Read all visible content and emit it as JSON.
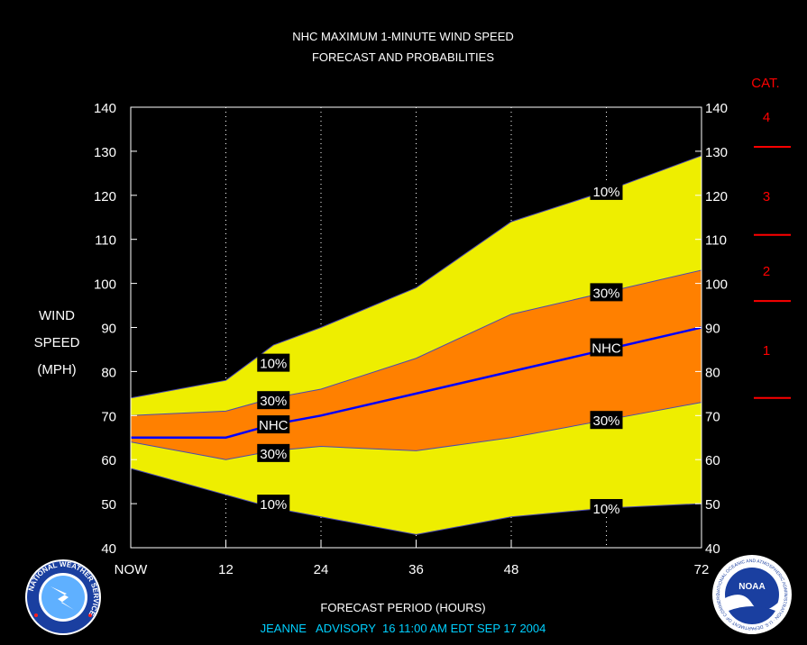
{
  "chart_data": {
    "type": "area",
    "title_line1": "NHC MAXIMUM 1-MINUTE WIND SPEED",
    "title_line2": "FORECAST AND PROBABILITIES",
    "ylabel_lines": [
      "WIND",
      "SPEED",
      "(MPH)"
    ],
    "xlabel": "FORECAST PERIOD (HOURS)",
    "advisory": "JEANNE   ADVISORY  16 11:00 AM EDT SEP 17 2004",
    "xlim": [
      0,
      72
    ],
    "ylim": [
      40,
      140
    ],
    "yticks": [
      40,
      50,
      60,
      70,
      80,
      90,
      100,
      110,
      120,
      130,
      140
    ],
    "xticks": [
      {
        "x": 0,
        "label": "NOW"
      },
      {
        "x": 12,
        "label": "12"
      },
      {
        "x": 24,
        "label": "24"
      },
      {
        "x": 36,
        "label": "36"
      },
      {
        "x": 48,
        "label": "48"
      },
      {
        "x": 72,
        "label": "72"
      }
    ],
    "vgrid_hours": [
      12,
      24,
      36,
      48,
      60
    ],
    "x": [
      0,
      12,
      18,
      24,
      36,
      48,
      60,
      72
    ],
    "series": [
      {
        "name": "10%",
        "values": [
          74,
          78,
          86,
          90,
          99,
          114,
          121,
          129
        ]
      },
      {
        "name": "30%",
        "values": [
          70,
          71,
          74,
          76,
          83,
          93,
          98,
          103
        ]
      },
      {
        "name": "NHC",
        "values": [
          65,
          65,
          68,
          70,
          75,
          80,
          85,
          90
        ]
      },
      {
        "name": "30%",
        "values": [
          64,
          60,
          62,
          63,
          62,
          65,
          69,
          73
        ]
      },
      {
        "name": "10%",
        "values": [
          58,
          52,
          49,
          47,
          43,
          47,
          49,
          50
        ]
      }
    ],
    "labels": [
      {
        "text": "10%",
        "x": 18,
        "y": 82
      },
      {
        "text": "30%",
        "x": 18,
        "y": 73.5
      },
      {
        "text": "NHC",
        "x": 18,
        "y": 68
      },
      {
        "text": "30%",
        "x": 18,
        "y": 61.5
      },
      {
        "text": "10%",
        "x": 18,
        "y": 50
      },
      {
        "text": "10%",
        "x": 60,
        "y": 121
      },
      {
        "text": "30%",
        "x": 60,
        "y": 98
      },
      {
        "text": "NHC",
        "x": 60,
        "y": 85.5
      },
      {
        "text": "30%",
        "x": 60,
        "y": 69
      },
      {
        "text": "10%",
        "x": 60,
        "y": 49
      }
    ],
    "category_title": "CAT.",
    "category_thresholds": [
      74,
      96,
      111,
      131
    ],
    "categories": [
      {
        "label": "1",
        "y": 85
      },
      {
        "label": "2",
        "y": 103
      },
      {
        "label": "3",
        "y": 120
      },
      {
        "label": "4",
        "y": 138
      }
    ],
    "colors": {
      "background": "#000000",
      "band10": "#eeee00",
      "band30": "#ff8000",
      "nhc_line": "#0000ff",
      "text": "#ffffff",
      "category": "#ff0000",
      "advisory": "#00d0ff"
    }
  },
  "logos": {
    "left_text": "NATIONAL WEATHER SERVICE",
    "right_center": "NOAA",
    "right_ring": "NATIONAL OCEANIC AND ATMOSPHERIC ADMINISTRATION · U.S. DEPARTMENT OF COMMERCE"
  }
}
